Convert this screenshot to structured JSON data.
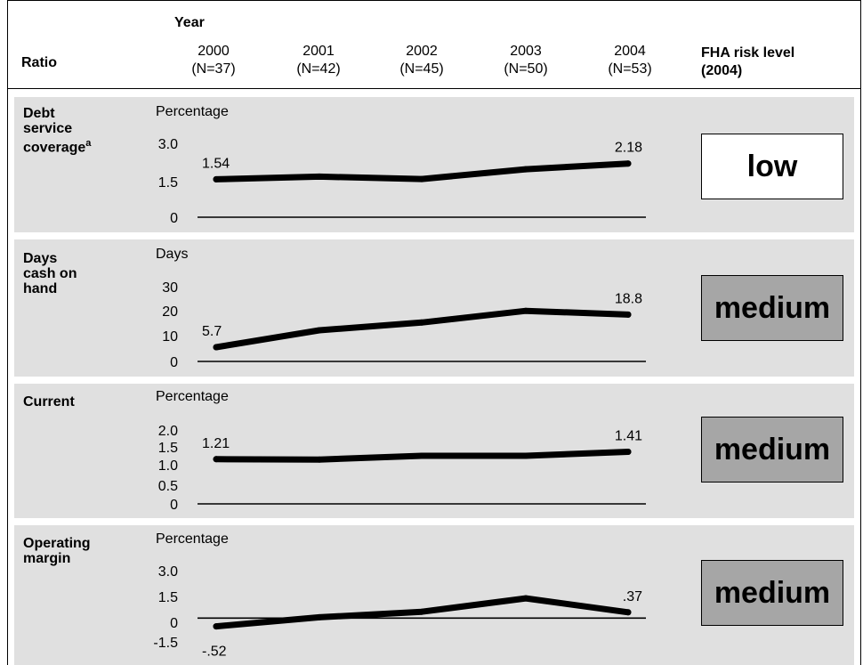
{
  "header": {
    "ratio_label": "Ratio",
    "year_label": "Year",
    "years": [
      {
        "year": "2000",
        "n": "(N=37)"
      },
      {
        "year": "2001",
        "n": "(N=42)"
      },
      {
        "year": "2002",
        "n": "(N=45)"
      },
      {
        "year": "2003",
        "n": "(N=50)"
      },
      {
        "year": "2004",
        "n": "(N=53)"
      }
    ],
    "risk_label_line1": "FHA risk level",
    "risk_label_line2": "(2004)"
  },
  "colors": {
    "band": "#e0e0e0",
    "line": "#000000",
    "risk_low_fill": "#ffffff",
    "risk_medium_fill": "#a6a6a6"
  },
  "chart_data": [
    {
      "type": "line",
      "ratio_lines": [
        "Debt",
        "service",
        "coverage"
      ],
      "ratio_sup": "a",
      "ylabel": "Percentage",
      "x": [
        "2000",
        "2001",
        "2002",
        "2003",
        "2004"
      ],
      "values": [
        1.54,
        1.65,
        1.55,
        1.95,
        2.18
      ],
      "ylim": [
        0,
        3.0
      ],
      "yticks": [
        "3.0",
        "1.5",
        "0"
      ],
      "data_labels": [
        {
          "index": 0,
          "text": "1.54"
        },
        {
          "index": 4,
          "text": "2.18"
        }
      ],
      "risk": "low"
    },
    {
      "type": "line",
      "ratio_lines": [
        "Days",
        "cash on",
        "hand"
      ],
      "ylabel": "Days",
      "x": [
        "2000",
        "2001",
        "2002",
        "2003",
        "2004"
      ],
      "values": [
        5.7,
        12.5,
        15.6,
        20.3,
        18.8
      ],
      "ylim": [
        0,
        30
      ],
      "yticks": [
        "30",
        "20",
        "10",
        "0"
      ],
      "data_labels": [
        {
          "index": 0,
          "text": "5.7"
        },
        {
          "index": 4,
          "text": "18.8"
        }
      ],
      "risk": "medium"
    },
    {
      "type": "line",
      "ratio_lines": [
        "Current"
      ],
      "ylabel": "Percentage",
      "x": [
        "2000",
        "2001",
        "2002",
        "2003",
        "2004"
      ],
      "values": [
        1.21,
        1.2,
        1.3,
        1.3,
        1.41
      ],
      "ylim": [
        0,
        2.0
      ],
      "yticks": [
        "2.0",
        "1.5",
        "1.0",
        "0.5",
        "0"
      ],
      "data_labels": [
        {
          "index": 0,
          "text": "1.21"
        },
        {
          "index": 4,
          "text": "1.41"
        }
      ],
      "risk": "medium"
    },
    {
      "type": "line",
      "ratio_lines": [
        "Operating",
        "margin"
      ],
      "ylabel": "Percentage",
      "x": [
        "2000",
        "2001",
        "2002",
        "2003",
        "2004"
      ],
      "values": [
        -0.52,
        0.05,
        0.4,
        1.25,
        0.37
      ],
      "ylim": [
        -1.5,
        3.0
      ],
      "yticks": [
        "3.0",
        "1.5",
        "0",
        "-1.5"
      ],
      "data_labels": [
        {
          "index": 0,
          "text": "-.52"
        },
        {
          "index": 4,
          "text": ".37"
        }
      ],
      "risk": "medium"
    }
  ]
}
